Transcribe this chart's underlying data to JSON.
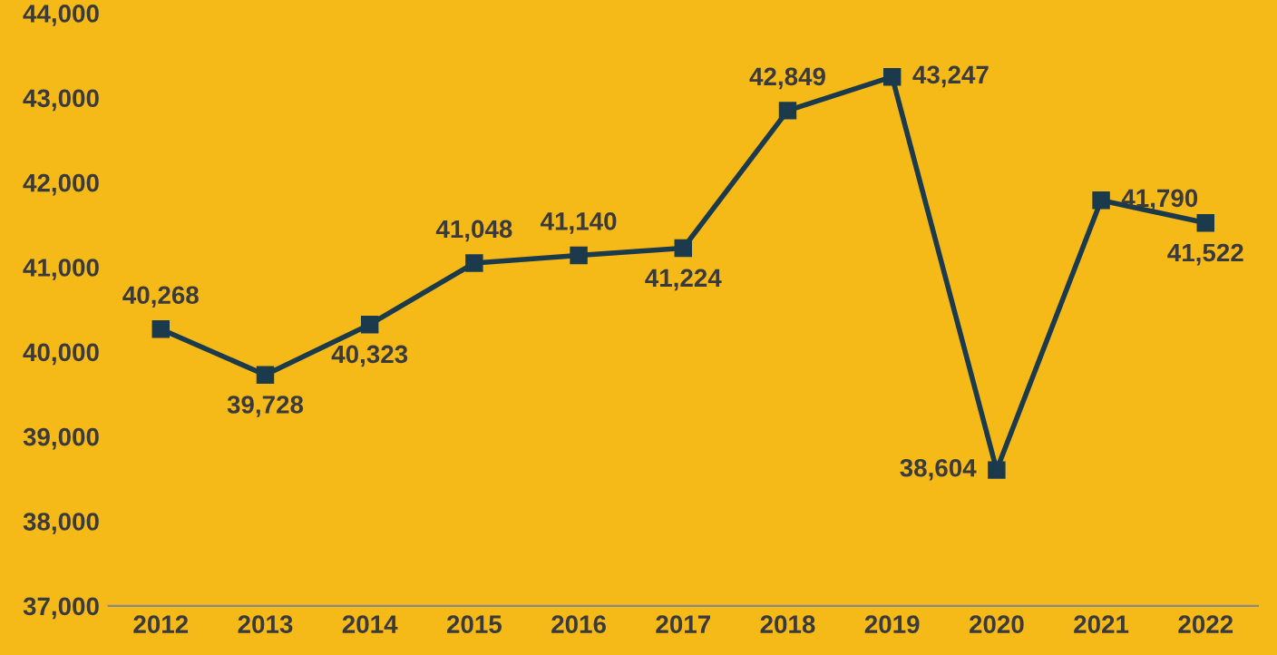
{
  "chart_data": {
    "type": "line",
    "categories": [
      "2012",
      "2013",
      "2014",
      "2015",
      "2016",
      "2017",
      "2018",
      "2019",
      "2020",
      "2021",
      "2022"
    ],
    "series": [
      {
        "color": "#1b3a4b",
        "values": [
          40268,
          39728,
          40323,
          41048,
          41140,
          41224,
          42849,
          43247,
          38604,
          41790,
          41522
        ],
        "value_labels": [
          "40,268",
          "39,728",
          "40,323",
          "41,048",
          "41,140",
          "41,224",
          "42,849",
          "43,247",
          "38,604",
          "41,790",
          "41,522"
        ]
      }
    ],
    "ylim": [
      37000,
      44000
    ],
    "yticks": [
      {
        "value": 37000,
        "label": "37,000"
      },
      {
        "value": 38000,
        "label": "38,000"
      },
      {
        "value": 39000,
        "label": "39,000"
      },
      {
        "value": 40000,
        "label": "40,000"
      },
      {
        "value": 41000,
        "label": "41,000"
      },
      {
        "value": 42000,
        "label": "42,000"
      },
      {
        "value": 43000,
        "label": "43,000"
      },
      {
        "value": 44000,
        "label": "44,000"
      }
    ],
    "grid": false,
    "legend": false,
    "marker": "square",
    "line_style": "solid"
  }
}
